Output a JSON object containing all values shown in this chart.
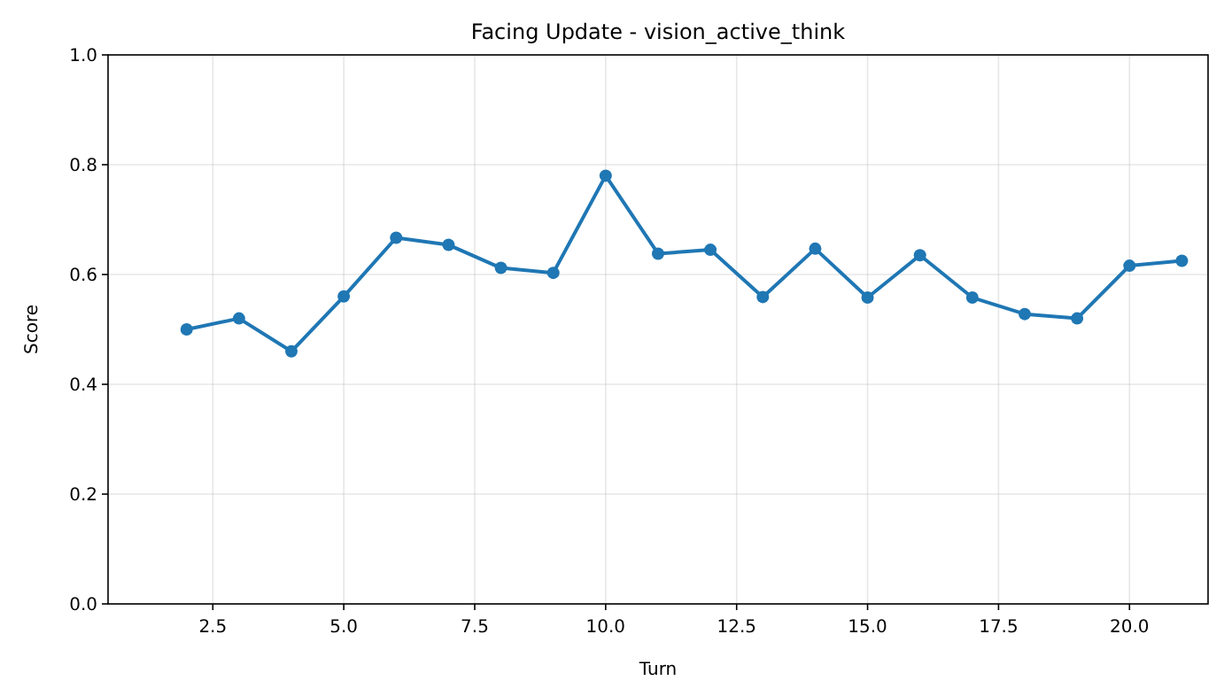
{
  "chart_data": {
    "type": "line",
    "title": "Facing Update - vision_active_think",
    "xlabel": "Turn",
    "ylabel": "Score",
    "x": [
      2,
      3,
      4,
      5,
      6,
      7,
      8,
      9,
      10,
      11,
      12,
      13,
      14,
      15,
      16,
      17,
      18,
      19,
      20,
      21
    ],
    "series": [
      {
        "color": "#1f77b4",
        "values": [
          0.5,
          0.52,
          0.46,
          0.56,
          0.667,
          0.654,
          0.612,
          0.603,
          0.78,
          0.638,
          0.645,
          0.559,
          0.647,
          0.558,
          0.635,
          0.558,
          0.528,
          0.52,
          0.616,
          0.625
        ]
      }
    ],
    "xlim": [
      0.5,
      21.5
    ],
    "xticks": [
      {
        "value": 2.5,
        "label": "2.5"
      },
      {
        "value": 5,
        "label": "5.0"
      },
      {
        "value": 7.5,
        "label": "7.5"
      },
      {
        "value": 10,
        "label": "10.0"
      },
      {
        "value": 12.5,
        "label": "12.5"
      },
      {
        "value": 15,
        "label": "15.0"
      },
      {
        "value": 17.5,
        "label": "17.5"
      },
      {
        "value": 20,
        "label": "20.0"
      }
    ],
    "ylim": [
      0,
      1
    ],
    "yticks": [
      {
        "value": 0,
        "label": "0.0"
      },
      {
        "value": 0.2,
        "label": "0.2"
      },
      {
        "value": 0.4,
        "label": "0.4"
      },
      {
        "value": 0.6,
        "label": "0.6"
      },
      {
        "value": 0.8,
        "label": "0.8"
      },
      {
        "value": 1,
        "label": "1.0"
      }
    ],
    "grid": true,
    "marker": "circle",
    "line_style": "solid"
  }
}
